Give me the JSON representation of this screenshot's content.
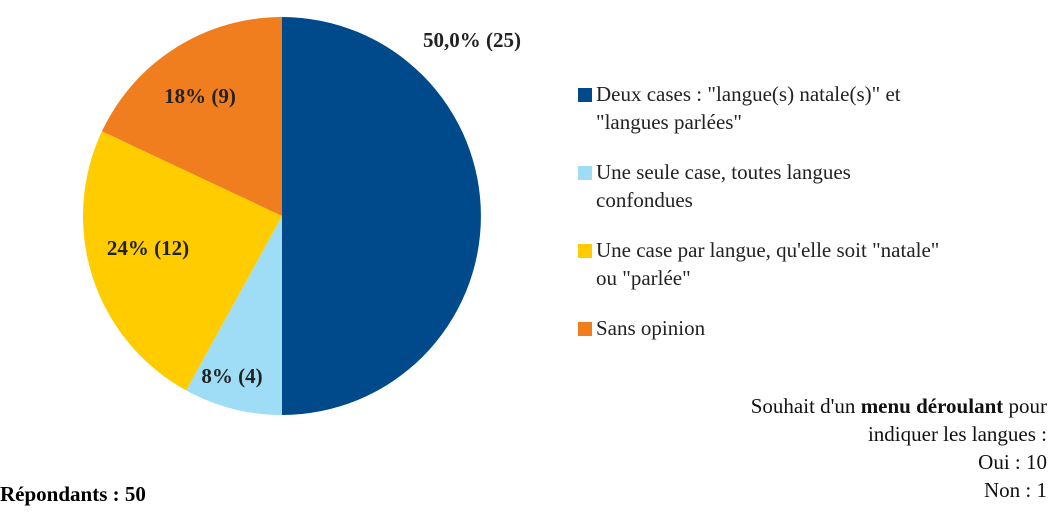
{
  "chart_data": {
    "type": "pie",
    "categories": [
      "Deux cases : \"langue(s) natale(s)\" et \"langues parlées\"",
      "Une seule case, toutes langues confondues",
      "Une case par langue, qu'elle soit \"natale\" ou \"parlée\"",
      "Sans opinion"
    ],
    "values": [
      50,
      8,
      24,
      18
    ],
    "value_labels": [
      "50,0% (25)",
      "8% (4)",
      "24% (12)",
      "18% (9)"
    ],
    "colors": [
      "#004a8c",
      "#9fddf7",
      "#ffcc00",
      "#f07e1e"
    ],
    "legend": "right",
    "annotations": [
      "Souhait d'un",
      "menu déroulant",
      "pour",
      "indiquer les langues :",
      "Oui : 10",
      "Non : 1",
      "Répondants : 50"
    ]
  }
}
